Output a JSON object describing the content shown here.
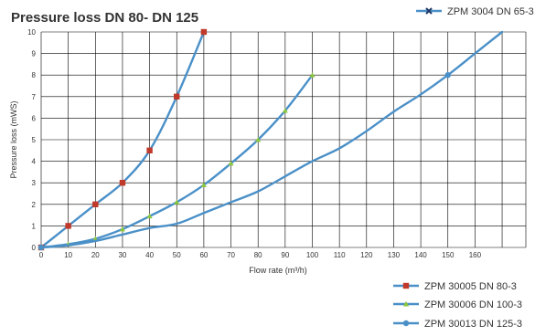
{
  "chart_data": {
    "type": "line",
    "title": "Pressure loss DN 80-  DN 125",
    "xlabel": "Flow rate (m³/h)",
    "ylabel": "Pressure loss (mWS)",
    "xlim": [
      0,
      175
    ],
    "ylim": [
      0,
      10
    ],
    "x_ticks": [
      "0",
      "10",
      "20",
      "30",
      "40",
      "50",
      "60",
      "70",
      "80",
      "90",
      "100",
      "110",
      "120",
      "130",
      "140",
      "150",
      "160"
    ],
    "y_ticks": [
      "0",
      "1",
      "2",
      "3",
      "4",
      "5",
      "6",
      "7",
      "8",
      "9",
      "10"
    ],
    "grid": true,
    "legend_position": "right",
    "series": [
      {
        "name": "ZPM 3004 DN 65-3",
        "color": "#4a90c8",
        "marker": "x",
        "marker_color": "#1f3a68",
        "points": []
      },
      {
        "name": "ZPM 30005 DN 80-3",
        "color": "#4a90c8",
        "marker": "square",
        "marker_color": "#c0392b",
        "points": [
          [
            0,
            0
          ],
          [
            10,
            1
          ],
          [
            20,
            2
          ],
          [
            30,
            3
          ],
          [
            40,
            4.5
          ],
          [
            50,
            7
          ],
          [
            60,
            10
          ]
        ]
      },
      {
        "name": "ZPM 30006 DN 100-3",
        "color": "#4a90c8",
        "marker": "triangle",
        "marker_color": "#8cc63f",
        "points": [
          [
            0,
            0
          ],
          [
            10,
            0.15
          ],
          [
            20,
            0.4
          ],
          [
            30,
            0.85
          ],
          [
            40,
            1.45
          ],
          [
            50,
            2.1
          ],
          [
            60,
            2.9
          ],
          [
            70,
            3.9
          ],
          [
            80,
            5
          ],
          [
            90,
            6.35
          ],
          [
            100,
            8
          ]
        ]
      },
      {
        "name": "ZPM 30013 DN 125-3",
        "color": "#4a90c8",
        "marker": "circle",
        "marker_color": "#4a90c8",
        "points": [
          [
            0,
            0
          ],
          [
            10,
            0.1
          ],
          [
            20,
            0.3
          ],
          [
            30,
            0.6
          ],
          [
            40,
            0.9
          ],
          [
            50,
            1.1
          ],
          [
            60,
            1.6
          ],
          [
            70,
            2.1
          ],
          [
            80,
            2.6
          ],
          [
            90,
            3.3
          ],
          [
            100,
            4
          ],
          [
            110,
            4.6
          ],
          [
            120,
            5.4
          ],
          [
            130,
            6.3
          ],
          [
            140,
            7.1
          ],
          [
            150,
            8
          ],
          [
            160,
            9
          ],
          [
            170,
            10
          ]
        ],
        "markers_at": [
          [
            0,
            0
          ],
          [
            150,
            8
          ]
        ]
      }
    ]
  }
}
